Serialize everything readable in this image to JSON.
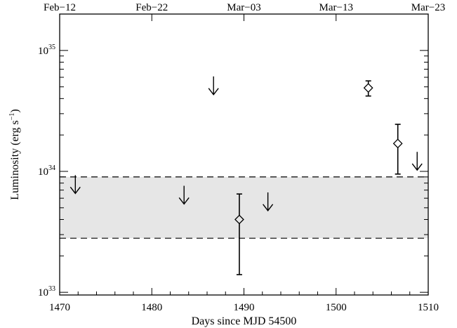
{
  "chart_data": {
    "type": "scatter",
    "title": "",
    "xlabel": "Days since MJD 54500",
    "ylabel": "Luminosity (erg s",
    "ylabel_sup": "−1",
    "ylabel_end": ")",
    "xlim": [
      1470,
      1510
    ],
    "ylim": [
      9.5e+32,
      2e+35
    ],
    "yscale": "log",
    "x_ticks": [
      1470,
      1480,
      1490,
      1500,
      1510
    ],
    "x_tick_labels": [
      "1470",
      "1480",
      "1490",
      "1500",
      "1510"
    ],
    "y_ticks": [
      1e+33,
      1e+34,
      1e+35
    ],
    "y_tick_labels": [
      {
        "base": "10",
        "exp": "33"
      },
      {
        "base": "10",
        "exp": "34"
      },
      {
        "base": "10",
        "exp": "35"
      }
    ],
    "top_axis": {
      "labels": [
        "Feb−12",
        "Feb−22",
        "Mar−03",
        "Mar−13",
        "Mar−23"
      ],
      "positions": [
        1470,
        1480,
        1490,
        1500,
        1510
      ]
    },
    "band": {
      "y_low": 2.8e+33,
      "y_high": 9e+33,
      "color": "#e6e6e6"
    },
    "detections": [
      {
        "x": 1489.5,
        "y": 4e+33,
        "y_low": 1.4e+33,
        "y_high": 6.5e+33
      },
      {
        "x": 1503.5,
        "y": 4.9e+34,
        "y_low": 4.2e+34,
        "y_high": 5.6e+34
      },
      {
        "x": 1506.7,
        "y": 1.7e+34,
        "y_low": 9.5e+33,
        "y_high": 2.45e+34
      }
    ],
    "upper_limits": [
      {
        "x": 1471.7,
        "y": 9.3e+33
      },
      {
        "x": 1483.5,
        "y": 7.6e+33
      },
      {
        "x": 1486.7,
        "y": 6.1e+34
      },
      {
        "x": 1492.6,
        "y": 6.7e+33
      },
      {
        "x": 1508.8,
        "y": 1.45e+34
      }
    ],
    "grid": false,
    "colors": {
      "axes": "#000000",
      "band": "#e6e6e6"
    }
  }
}
